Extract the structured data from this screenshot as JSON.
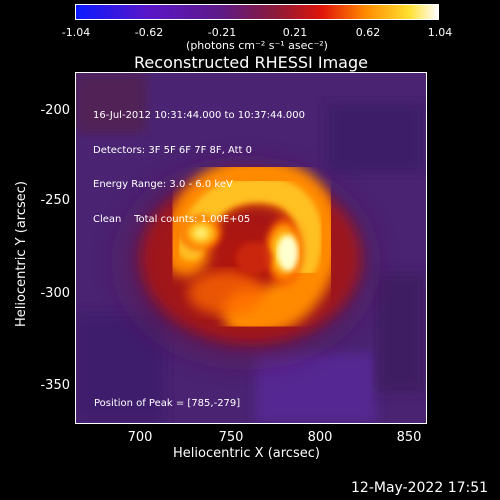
{
  "colorbar": {
    "ticks": [
      "-1.04",
      "-0.62",
      "-0.21",
      "0.21",
      "0.62",
      "1.04"
    ],
    "units": "(photons cm⁻² s⁻¹ asec⁻²)"
  },
  "title": "Reconstructed RHESSI Image",
  "info_lines": [
    "16-Jul-2012 10:31:44.000 to 10:37:44.000",
    "Detectors: 3F 5F 6F 7F 8F, Att 0",
    "Energy Range: 3.0 - 6.0 keV",
    "Clean    Total counts: 1.00E+05"
  ],
  "peak_label": "Position of Peak = [785,-279]",
  "axes": {
    "x_label": "Heliocentric X (arcsec)",
    "y_label": "Heliocentric Y (arcsec)",
    "x_ticks": [
      "700",
      "750",
      "800",
      "850"
    ],
    "y_ticks": [
      "-200",
      "-250",
      "-300",
      "-350"
    ]
  },
  "timestamp": "12-May-2022 17:51",
  "colors": {
    "background": "#000000",
    "text": "#ffffff"
  }
}
